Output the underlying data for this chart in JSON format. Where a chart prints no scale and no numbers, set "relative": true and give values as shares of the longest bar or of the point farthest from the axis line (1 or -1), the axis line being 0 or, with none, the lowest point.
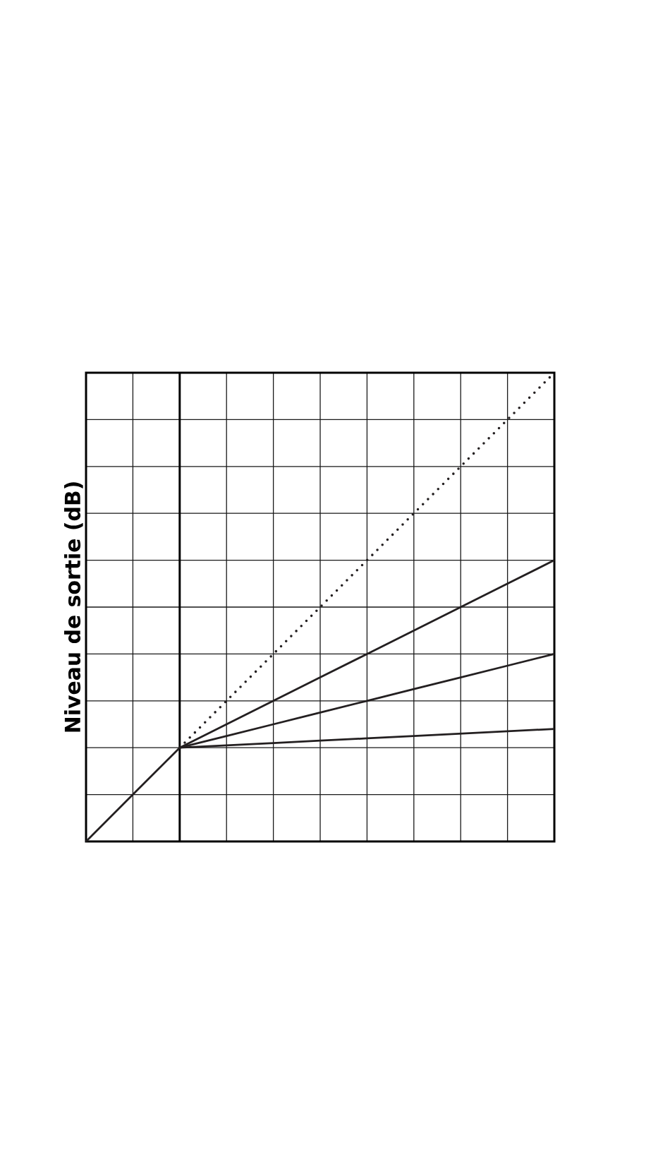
{
  "chart_data": {
    "type": "line",
    "relative": true,
    "grid": true,
    "ylabel": "Niveau de sortie (dB)",
    "categories": [
      null,
      null,
      null,
      null,
      null,
      null,
      null,
      null,
      null,
      null,
      null
    ],
    "series": [
      {
        "color": "#231f20",
        "line_style": "dotted",
        "values": [
          null,
          null,
          0.2,
          0.3,
          0.4,
          0.5,
          0.6,
          0.7,
          0.8,
          0.9,
          1.0
        ]
      },
      {
        "color": "#231f20",
        "line_style": "solid",
        "values": [
          0,
          0.1,
          0.2,
          0.25,
          0.3,
          0.35,
          0.4,
          0.45,
          0.5,
          0.55,
          0.6
        ]
      },
      {
        "color": "#231f20",
        "line_style": "solid",
        "values": [
          null,
          null,
          0.2,
          0.225,
          0.25,
          0.275,
          0.3,
          0.325,
          0.35,
          0.375,
          0.4
        ]
      },
      {
        "color": "#231f20",
        "line_style": "solid",
        "values": [
          null,
          null,
          0.2,
          0.205,
          0.21,
          0.215,
          0.22,
          0.225,
          0.23,
          0.235,
          0.24
        ]
      }
    ]
  }
}
